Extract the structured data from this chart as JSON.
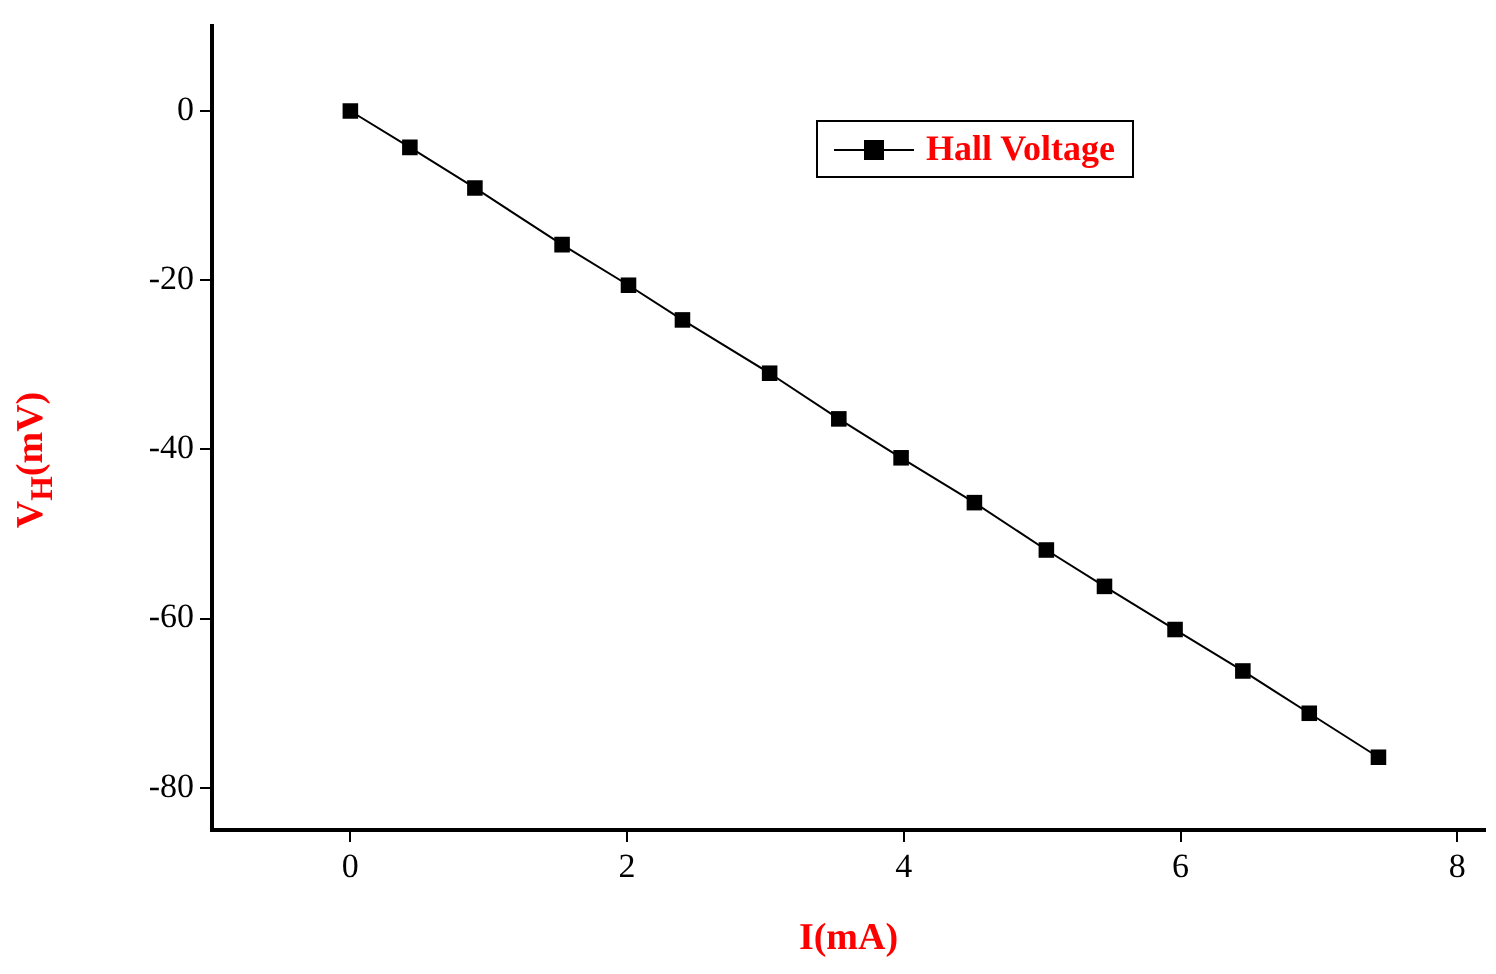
{
  "chart_data": {
    "type": "line",
    "xlabel": "I(mA)",
    "ylabel": "V$_{H}$(mV)",
    "x": [
      0,
      0.43,
      0.9,
      1.53,
      2.01,
      2.4,
      3.03,
      3.53,
      3.98,
      4.51,
      5.03,
      5.45,
      5.96,
      6.45,
      6.93,
      7.43
    ],
    "series": [
      {
        "name": "Hall Voltage",
        "color": "#000000",
        "values": [
          0,
          -4.3,
          -9.1,
          -15.8,
          -20.6,
          -24.7,
          -31.0,
          -36.4,
          -41.0,
          -46.3,
          -51.9,
          -56.2,
          -61.3,
          -66.2,
          -71.2,
          -76.4
        ]
      }
    ],
    "xlim": [
      -1,
      8.2
    ],
    "xticks": [
      0,
      2,
      4,
      6,
      8
    ],
    "ylim": [
      -85,
      10
    ],
    "yticks": [
      -80,
      -60,
      -40,
      -20,
      0
    ],
    "grid": false,
    "legend": "top right",
    "marker": "square",
    "line_style": "solid"
  }
}
